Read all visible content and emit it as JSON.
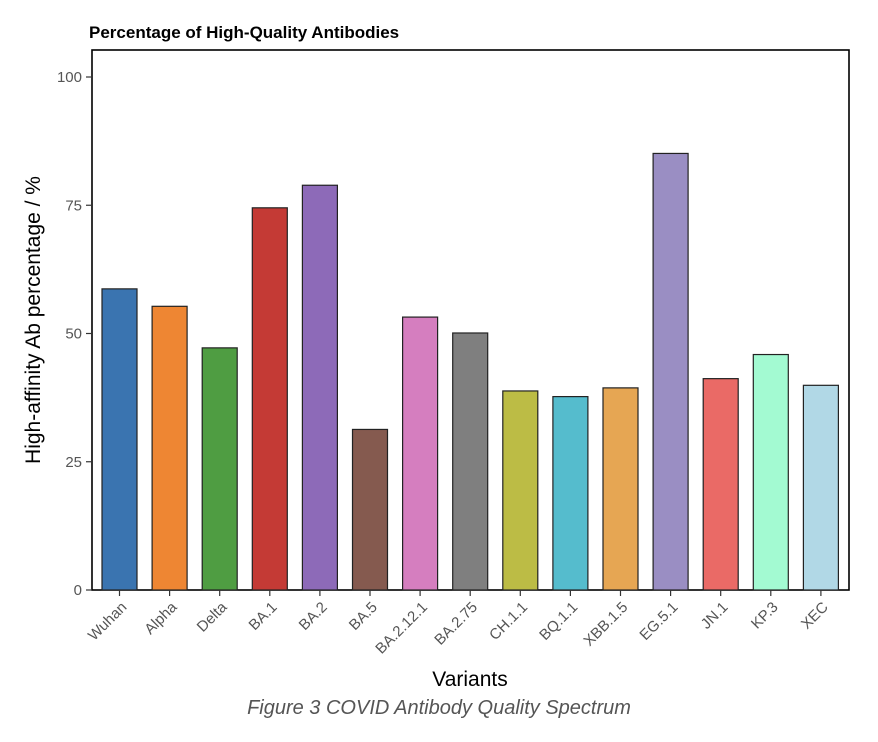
{
  "chart_data": {
    "type": "bar",
    "title": "Percentage of High-Quality Antibodies",
    "xlabel": "Variants",
    "ylabel": "High-affinity Ab percentage / %",
    "ylim": [
      0,
      100
    ],
    "yticks": [
      0,
      25,
      50,
      75,
      100
    ],
    "categories": [
      "Wuhan",
      "Alpha",
      "Delta",
      "BA.1",
      "BA.2",
      "BA.5",
      "BA.2.12.1",
      "BA.2.75",
      "CH.1.1",
      "BQ.1.1",
      "XBB.1.5",
      "EG.5.1",
      "JN.1",
      "KP.3",
      "XEC"
    ],
    "values": [
      58.7,
      55.3,
      47.2,
      74.5,
      78.9,
      31.3,
      53.2,
      50.1,
      38.8,
      37.7,
      39.4,
      85.1,
      41.2,
      45.9,
      39.9
    ],
    "colors": [
      "#3a74b0",
      "#ee8633",
      "#4f9d42",
      "#c43a35",
      "#8d6ab8",
      "#855a4f",
      "#d57ebf",
      "#7f7f7f",
      "#bcbc45",
      "#55bccd",
      "#e6a653",
      "#9a8ec3",
      "#ea6a66",
      "#a3fad2",
      "#b1d8e6"
    ],
    "grid": false,
    "legend": "none"
  },
  "caption": "Figure 3 COVID Antibody Quality Spectrum"
}
